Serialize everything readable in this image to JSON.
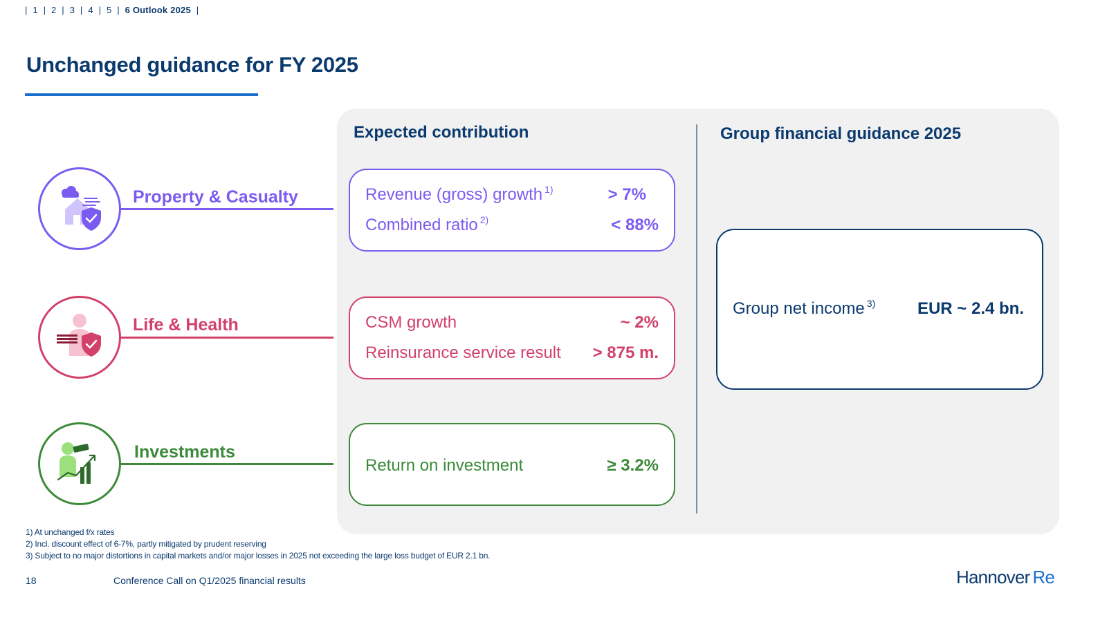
{
  "nav": {
    "sep": "|",
    "items": [
      "1",
      "2",
      "3",
      "4",
      "5"
    ],
    "active": "6 Outlook 2025"
  },
  "title": "Unchanged guidance for FY 2025",
  "columns": {
    "left_heading": "Expected contribution",
    "right_heading": "Group financial guidance 2025"
  },
  "segments": [
    {
      "label": "Property & Casualty",
      "icon": "house-storm-shield-icon",
      "color": "#7b5cf0",
      "kpis": [
        {
          "label": "Revenue (gross) growth",
          "note": "1)",
          "value": "> 7%"
        },
        {
          "label": "Combined ratio",
          "note": "2)",
          "value": "< 88%"
        }
      ]
    },
    {
      "label": "Life & Health",
      "icon": "person-shield-icon",
      "color": "#d2416a",
      "kpis": [
        {
          "label": "CSM growth",
          "note": "",
          "value": "~  2%"
        },
        {
          "label": "Reinsurance service result",
          "note": "",
          "value": "> 875 m."
        }
      ]
    },
    {
      "label": "Investments",
      "icon": "telescope-growth-chart-icon",
      "color": "#3c8a3a",
      "kpis": [
        {
          "label": "Return on investment",
          "note": "",
          "value": "≥ 3.2%"
        }
      ]
    }
  ],
  "group_guidance": {
    "label": "Group net income",
    "note": "3)",
    "value": "EUR ~ 2.4 bn."
  },
  "footnotes": [
    "1) At unchanged f/x rates",
    "2) Incl. discount effect of 6-7%, partly mitigated by prudent reserving",
    "3) Subject to no major distortions in capital markets and/or major losses in 2025 not exceeding the large loss budget of EUR 2.1 bn."
  ],
  "footer": {
    "page_number": "18",
    "presentation_title": "Conference Call on Q1/2025 financial results",
    "logo_word1": "Hannover",
    "logo_word2": "Re"
  },
  "colors": {
    "primary": "#0b3a6e",
    "accent": "#1a6fcc",
    "property_casualty": "#7b5cf0",
    "life_health": "#d2416a",
    "investments": "#3c8a3a",
    "panel_bg": "#f1f1f1"
  }
}
